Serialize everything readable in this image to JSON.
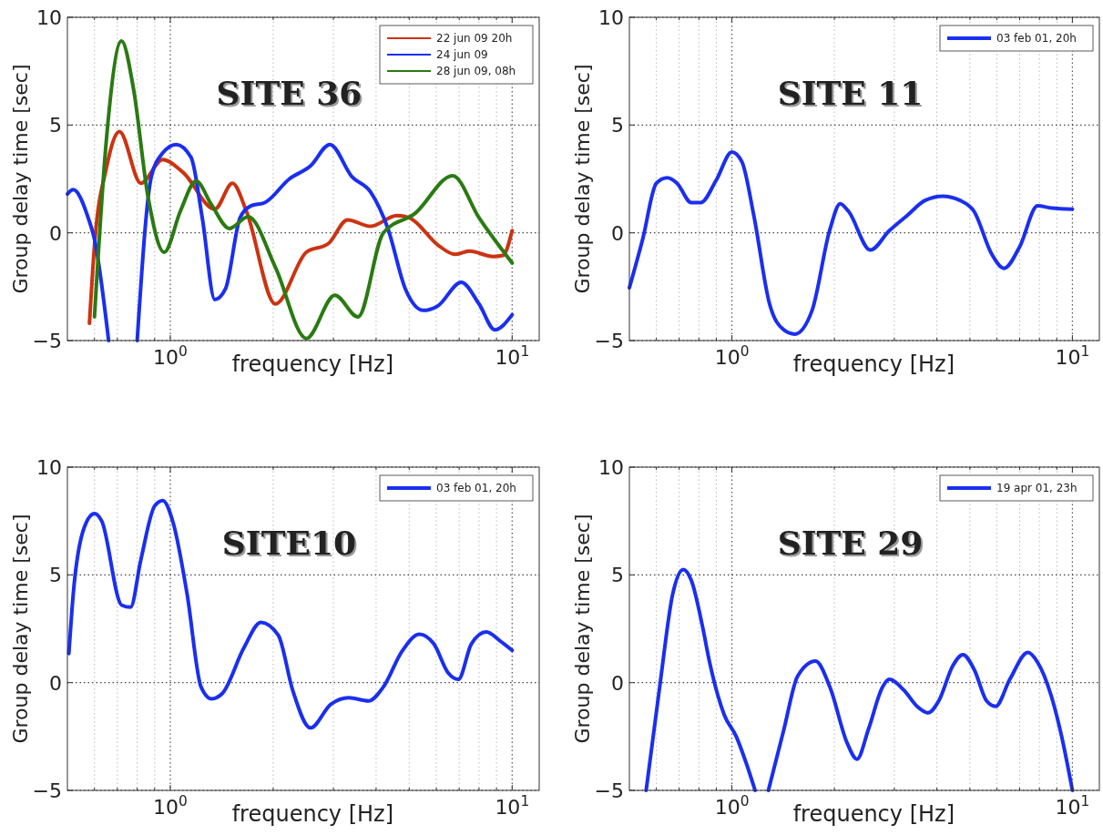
{
  "chart_data": [
    {
      "type": "line",
      "title": "SITE 36",
      "xlabel": "frequency [Hz]",
      "ylabel": "Group delay time [sec]",
      "log": "x",
      "grid": true,
      "legend": "top right",
      "line_style": "solid",
      "xlim": [
        0.5,
        12
      ],
      "ylim": [
        -5,
        10
      ],
      "yticks": [
        -5,
        0,
        5,
        10
      ],
      "xticks": [
        {
          "value": 0.6,
          "label": null
        },
        {
          "value": 0.7,
          "label": null
        },
        {
          "value": 0.8,
          "label": null
        },
        {
          "value": 0.9,
          "label": null
        },
        {
          "value": 1,
          "label": "10$^{0}$"
        },
        {
          "value": 2,
          "label": null
        },
        {
          "value": 3,
          "label": null
        },
        {
          "value": 4,
          "label": null
        },
        {
          "value": 5,
          "label": null
        },
        {
          "value": 6,
          "label": null
        },
        {
          "value": 7,
          "label": null
        },
        {
          "value": 8,
          "label": null
        },
        {
          "value": 9,
          "label": null
        },
        {
          "value": 10,
          "label": "10$^{1}$"
        }
      ],
      "series": [
        {
          "name": "22 jun 09 20h",
          "color": "#cc3311",
          "x": [
            0.58,
            0.6,
            0.65,
            0.71,
            0.82,
            0.95,
            1.09,
            1.35,
            1.52,
            1.67,
            2.03,
            2.5,
            2.9,
            3.3,
            3.85,
            4.6,
            5,
            6.1,
            6.8,
            7.5,
            8.8,
            9.4,
            10
          ],
          "values": [
            -4.2,
            -0.6,
            3.0,
            4.7,
            2.3,
            3.4,
            2.8,
            1.1,
            2.3,
            1.0,
            -3.3,
            -0.9,
            -0.5,
            0.6,
            0.3,
            0.8,
            0.7,
            -0.6,
            -1.0,
            -0.85,
            -1.1,
            -1.05,
            0.1
          ]
        },
        {
          "name": "24 jun 09",
          "color": "#1a2ff0",
          "x": [
            0.5,
            0.52,
            0.575,
            0.6,
            0.66,
            0.73,
            0.8,
            0.88,
            0.95,
            1.04,
            1.15,
            1.24,
            1.35,
            1.45,
            1.6,
            1.72,
            1.89,
            2.23,
            2.57,
            2.93,
            3.4,
            3.85,
            4.33,
            4.87,
            5.5,
            6.05,
            7.1,
            8,
            8.9,
            10
          ],
          "values": [
            1.8,
            2.0,
            0.7,
            -0.3,
            -5,
            null,
            -5,
            2.6,
            3.7,
            4.1,
            3.5,
            0.7,
            -3.1,
            -2.6,
            0.7,
            1.25,
            1.4,
            2.5,
            3.1,
            4.1,
            2.6,
            1.9,
            0.2,
            -2.6,
            -3.6,
            -3.4,
            -2.3,
            -3.3,
            -4.5,
            -3.8
          ]
        },
        {
          "name": "28 jun 09, 08h",
          "color": "#2a7a12",
          "x": [
            0.6,
            0.65,
            0.72,
            0.78,
            0.86,
            0.96,
            1.07,
            1.19,
            1.32,
            1.49,
            1.69,
            2.03,
            2.5,
            3.03,
            3.54,
            4.2,
            5.2,
            6.7,
            8,
            10
          ],
          "values": [
            -3.9,
            4.3,
            8.9,
            6.7,
            1.7,
            -0.9,
            1.0,
            2.4,
            1.3,
            0.2,
            0.75,
            -1.6,
            -4.9,
            -2.9,
            -3.9,
            0,
            0.9,
            2.65,
            0.7,
            -1.4
          ]
        }
      ]
    },
    {
      "type": "line",
      "title": "SITE 11",
      "xlabel": "frequency [Hz]",
      "ylabel": "Group delay time [sec]",
      "log": "x",
      "grid": true,
      "legend": "top right",
      "line_style": "solid",
      "xlim": [
        0.5,
        12
      ],
      "ylim": [
        -5,
        10
      ],
      "yticks": [
        -5,
        0,
        5,
        10
      ],
      "xticks": [
        {
          "value": 0.6,
          "label": null
        },
        {
          "value": 0.7,
          "label": null
        },
        {
          "value": 0.8,
          "label": null
        },
        {
          "value": 0.9,
          "label": null
        },
        {
          "value": 1,
          "label": "10$^{0}$"
        },
        {
          "value": 2,
          "label": null
        },
        {
          "value": 3,
          "label": null
        },
        {
          "value": 4,
          "label": null
        },
        {
          "value": 5,
          "label": null
        },
        {
          "value": 6,
          "label": null
        },
        {
          "value": 7,
          "label": null
        },
        {
          "value": 8,
          "label": null
        },
        {
          "value": 9,
          "label": null
        },
        {
          "value": 10,
          "label": "10$^{1}$"
        }
      ],
      "series": [
        {
          "name": "03 feb 01, 20h",
          "color": "#1a2ff0",
          "x": [
            0.5,
            0.547,
            0.6,
            0.646,
            0.69,
            0.76,
            0.81,
            0.9,
            1,
            1.07,
            1.16,
            1.29,
            1.42,
            1.53,
            1.72,
            1.94,
            2.08,
            2.2,
            2.55,
            2.9,
            3.27,
            3.69,
            4.16,
            4.68,
            5.14,
            5.8,
            6.3,
            7.0,
            7.9,
            8.7,
            10
          ],
          "values": [
            -2.55,
            -0.3,
            2.3,
            2.55,
            2.3,
            1.4,
            1.4,
            2.45,
            3.75,
            3.3,
            0.8,
            -3.3,
            -4.5,
            -4.7,
            -3.6,
            0.15,
            1.35,
            1.0,
            -0.8,
            0.1,
            0.8,
            1.5,
            1.7,
            1.5,
            1.0,
            -1.0,
            -1.65,
            -0.65,
            1.25,
            1.15,
            1.1
          ]
        }
      ]
    },
    {
      "type": "line",
      "title": "SITE10",
      "xlabel": "frequency [Hz]",
      "ylabel": "Group delay time [sec]",
      "log": "x",
      "grid": true,
      "legend": "top right",
      "line_style": "solid",
      "xlim": [
        0.5,
        12
      ],
      "ylim": [
        -5,
        10
      ],
      "yticks": [
        -5,
        0,
        5,
        10
      ],
      "xticks": [
        {
          "value": 0.6,
          "label": null
        },
        {
          "value": 0.7,
          "label": null
        },
        {
          "value": 0.8,
          "label": null
        },
        {
          "value": 0.9,
          "label": null
        },
        {
          "value": 1,
          "label": "10$^{0}$"
        },
        {
          "value": 2,
          "label": null
        },
        {
          "value": 3,
          "label": null
        },
        {
          "value": 4,
          "label": null
        },
        {
          "value": 5,
          "label": null
        },
        {
          "value": 6,
          "label": null
        },
        {
          "value": 7,
          "label": null
        },
        {
          "value": 8,
          "label": null
        },
        {
          "value": 9,
          "label": null
        },
        {
          "value": 10,
          "label": "10$^{1}$"
        }
      ],
      "series": [
        {
          "name": "03 feb 01, 20h",
          "color": "#1a2ff0",
          "x": [
            0.505,
            0.52,
            0.56,
            0.6,
            0.63,
            0.72,
            0.765,
            0.82,
            0.9,
            0.95,
            1.02,
            1.12,
            1.23,
            1.32,
            1.42,
            1.64,
            1.84,
            2.07,
            2.28,
            2.57,
            2.95,
            3.33,
            3.8,
            4.2,
            4.76,
            5.35,
            5.9,
            6.5,
            6.96,
            7.6,
            8.4,
            9.2,
            10
          ],
          "values": [
            1.35,
            4.1,
            7.2,
            7.85,
            7.5,
            3.6,
            3.5,
            5.7,
            8.2,
            8.45,
            7.4,
            4.1,
            -0.2,
            -0.75,
            -0.5,
            1.6,
            2.8,
            2.2,
            -0.35,
            -2.1,
            -1.0,
            -0.7,
            -0.85,
            -0.2,
            1.45,
            2.25,
            1.8,
            0.45,
            0.15,
            1.8,
            2.35,
            1.95,
            1.5
          ]
        }
      ]
    },
    {
      "type": "line",
      "title": "SITE 29",
      "xlabel": "frequency [Hz]",
      "ylabel": "Group delay time [sec]",
      "log": "x",
      "grid": true,
      "legend": "top right",
      "line_style": "solid",
      "xlim": [
        0.5,
        12
      ],
      "ylim": [
        -5,
        10
      ],
      "yticks": [
        -5,
        0,
        5,
        10
      ],
      "xticks": [
        {
          "value": 0.6,
          "label": null
        },
        {
          "value": 0.7,
          "label": null
        },
        {
          "value": 0.8,
          "label": null
        },
        {
          "value": 0.9,
          "label": null
        },
        {
          "value": 1,
          "label": "10$^{0}$"
        },
        {
          "value": 2,
          "label": null
        },
        {
          "value": 3,
          "label": null
        },
        {
          "value": 4,
          "label": null
        },
        {
          "value": 5,
          "label": null
        },
        {
          "value": 6,
          "label": null
        },
        {
          "value": 7,
          "label": null
        },
        {
          "value": 8,
          "label": null
        },
        {
          "value": 9,
          "label": null
        },
        {
          "value": 10,
          "label": "10$^{1}$"
        }
      ],
      "series": [
        {
          "name": "19 apr 01, 23h",
          "color": "#1a2ff0",
          "x": [
            0.56,
            0.616,
            0.67,
            0.72,
            0.76,
            0.82,
            0.86,
            0.95,
            1.03,
            1.1,
            1.17,
            1.22,
            1.28,
            1.42,
            1.56,
            1.76,
            1.94,
            2.18,
            2.33,
            2.52,
            2.77,
            2.9,
            3.2,
            3.5,
            3.77,
            4.05,
            4.46,
            4.77,
            5.15,
            5.6,
            5.95,
            6.55,
            7.4,
            7.9,
            8.7,
            9.3,
            10
          ],
          "values": [
            -5,
            0,
            4.1,
            5.25,
            4.75,
            2.6,
            0.95,
            -1.5,
            -2.5,
            -3.7,
            -5,
            null,
            -5,
            -2.2,
            0.3,
            1.0,
            -0.2,
            -2.8,
            -3.55,
            -2.15,
            -0.2,
            0.15,
            -0.35,
            -1.1,
            -1.4,
            -0.85,
            0.8,
            1.3,
            0.6,
            -0.85,
            -1.1,
            0.15,
            1.4,
            0.95,
            -0.7,
            -2.5,
            -5
          ]
        }
      ]
    }
  ]
}
